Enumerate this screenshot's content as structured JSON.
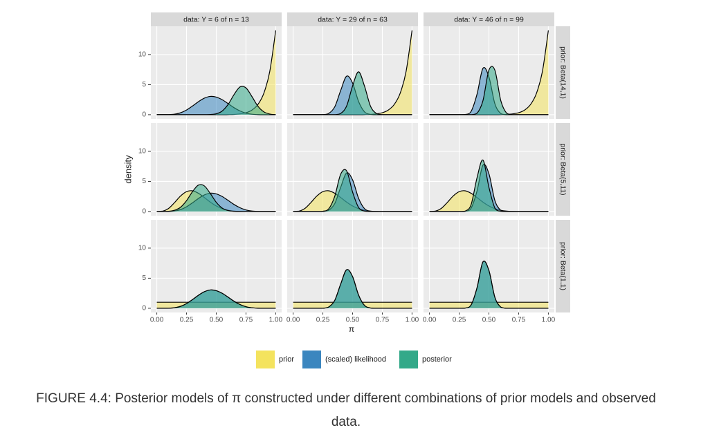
{
  "chart_data": {
    "type": "area",
    "caption": "FIGURE 4.4: Posterior models of π constructed under different combinations of prior models and observed data.",
    "x_label": "π",
    "y_label": "density",
    "x": [
      0,
      0.05,
      0.1,
      0.15,
      0.2,
      0.25,
      0.3,
      0.35,
      0.4,
      0.45,
      0.5,
      0.55,
      0.6,
      0.65,
      0.7,
      0.75,
      0.8,
      0.85,
      0.9,
      0.95,
      1
    ],
    "xlim": [
      -0.05,
      1.05
    ],
    "xticks": [
      {
        "value": 0,
        "label": "0.00"
      },
      {
        "value": 0.25,
        "label": "0.25"
      },
      {
        "value": 0.5,
        "label": "0.50"
      },
      {
        "value": 0.75,
        "label": "0.75"
      },
      {
        "value": 1,
        "label": "1.00"
      }
    ],
    "ylim": [
      -0.7,
      14.7
    ],
    "yticks": [
      0,
      5,
      10
    ],
    "grid": true,
    "legend_position": "bottom",
    "columns": [
      "data: Y = 6 of n = 13",
      "data: Y = 29 of n = 63",
      "data: Y = 46 of n = 99"
    ],
    "rows": [
      "prior: Beta(14,1)",
      "prior: Beta(5,11)",
      "prior: Beta(1,1)"
    ],
    "series": [
      {
        "name": "prior",
        "color": "#f4e35e"
      },
      {
        "name": "(scaled) likelihood",
        "color": "#3b86bf"
      },
      {
        "name": "posterior",
        "color": "#33a989"
      }
    ],
    "panels": [
      [
        [
          [
            0,
            0,
            0,
            0,
            0,
            0,
            0,
            0,
            0,
            0,
            0,
            0,
            0.02,
            0.05,
            0.14,
            0.33,
            0.77,
            1.69,
            3.56,
            7.19,
            14
          ],
          [
            0,
            0,
            0.01,
            0.09,
            0.32,
            0.78,
            1.44,
            2.16,
            2.75,
            3.04,
            2.93,
            2.49,
            1.84,
            1.16,
            0.62,
            0.26,
            0.08,
            0.02,
            0,
            0,
            0
          ],
          [
            0,
            0,
            0,
            0,
            0,
            0,
            0,
            0,
            0,
            0.03,
            0.15,
            0.61,
            1.71,
            3.36,
            4.62,
            4.46,
            3.02,
            1.43,
            0.48,
            0.11,
            0
          ]
        ],
        [
          [
            0,
            0,
            0,
            0,
            0,
            0,
            0,
            0,
            0,
            0,
            0,
            0,
            0.02,
            0.05,
            0.14,
            0.33,
            0.77,
            1.69,
            3.56,
            7.19,
            14
          ],
          [
            0,
            0,
            0,
            0,
            0,
            0.02,
            0.22,
            1.31,
            4.03,
            6.41,
            5.26,
            2.22,
            0.48,
            0.05,
            0,
            0,
            0,
            0,
            0,
            0,
            0
          ],
          [
            0,
            0,
            0,
            0,
            0,
            0,
            0,
            0.01,
            0.2,
            1.45,
            4.78,
            7.13,
            4.78,
            1.45,
            0.2,
            0,
            0,
            0,
            0,
            0,
            0
          ]
        ],
        [
          [
            0,
            0,
            0,
            0,
            0,
            0,
            0,
            0,
            0,
            0,
            0,
            0,
            0.02,
            0.05,
            0.14,
            0.33,
            0.77,
            1.69,
            3.56,
            7.19,
            14
          ],
          [
            0,
            0,
            0,
            0,
            0,
            0,
            0.03,
            0.54,
            3.4,
            7.72,
            6.29,
            1.84,
            0.19,
            0,
            0,
            0,
            0,
            0,
            0,
            0,
            0
          ],
          [
            0,
            0,
            0,
            0,
            0,
            0,
            0,
            0,
            0.23,
            2.34,
            7.41,
            7.41,
            2.34,
            0.23,
            0,
            0,
            0,
            0,
            0,
            0,
            0
          ]
        ]
      ],
      [
        [
          [
            0,
            0.06,
            0.52,
            1.5,
            2.58,
            3.3,
            3.44,
            3.03,
            2.32,
            1.56,
            0.92,
            0.47,
            0.2,
            0.07,
            0.02,
            0,
            0,
            0,
            0,
            0,
            0
          ],
          [
            0,
            0,
            0.01,
            0.09,
            0.32,
            0.78,
            1.44,
            2.16,
            2.75,
            3.04,
            2.93,
            2.49,
            1.84,
            1.16,
            0.62,
            0.26,
            0.08,
            0.02,
            0,
            0,
            0
          ],
          [
            0,
            0,
            0.04,
            0.21,
            0.71,
            1.8,
            3.29,
            4.39,
            4.25,
            2.99,
            1.53,
            0.57,
            0.15,
            0.03,
            0,
            0,
            0,
            0,
            0,
            0,
            0
          ]
        ],
        [
          [
            0,
            0.06,
            0.52,
            1.5,
            2.58,
            3.3,
            3.44,
            3.03,
            2.32,
            1.56,
            0.92,
            0.47,
            0.2,
            0.07,
            0.02,
            0,
            0,
            0,
            0,
            0,
            0
          ],
          [
            0,
            0,
            0,
            0,
            0,
            0.02,
            0.22,
            1.31,
            4.03,
            6.41,
            5.26,
            2.22,
            0.48,
            0.05,
            0,
            0,
            0,
            0,
            0,
            0,
            0
          ],
          [
            0,
            0,
            0,
            0,
            0,
            0.04,
            0.46,
            2.53,
            6.21,
            6.75,
            3.23,
            0.69,
            0.06,
            0,
            0,
            0,
            0,
            0,
            0,
            0,
            0
          ]
        ],
        [
          [
            0,
            0.06,
            0.52,
            1.5,
            2.58,
            3.3,
            3.44,
            3.03,
            2.32,
            1.56,
            0.92,
            0.47,
            0.2,
            0.07,
            0.02,
            0,
            0,
            0,
            0,
            0,
            0
          ],
          [
            0,
            0,
            0,
            0,
            0,
            0,
            0.03,
            0.54,
            3.4,
            7.72,
            6.29,
            1.84,
            0.19,
            0,
            0,
            0,
            0,
            0,
            0,
            0,
            0
          ],
          [
            0,
            0,
            0,
            0,
            0,
            0,
            0.07,
            1.13,
            5.61,
            8.55,
            4.03,
            0.59,
            0.03,
            0,
            0,
            0,
            0,
            0,
            0,
            0,
            0
          ]
        ]
      ],
      [
        [
          [
            1,
            1,
            1,
            1,
            1,
            1,
            1,
            1,
            1,
            1,
            1,
            1,
            1,
            1,
            1,
            1,
            1,
            1,
            1,
            1,
            1
          ],
          [
            0,
            0,
            0.01,
            0.09,
            0.32,
            0.78,
            1.44,
            2.16,
            2.75,
            3.04,
            2.93,
            2.49,
            1.84,
            1.16,
            0.62,
            0.26,
            0.08,
            0.02,
            0,
            0,
            0
          ],
          [
            0,
            0,
            0.01,
            0.09,
            0.32,
            0.78,
            1.44,
            2.16,
            2.75,
            3.04,
            2.93,
            2.49,
            1.84,
            1.16,
            0.62,
            0.26,
            0.08,
            0.02,
            0,
            0,
            0
          ]
        ],
        [
          [
            1,
            1,
            1,
            1,
            1,
            1,
            1,
            1,
            1,
            1,
            1,
            1,
            1,
            1,
            1,
            1,
            1,
            1,
            1,
            1,
            1
          ],
          [
            0,
            0,
            0,
            0,
            0,
            0.02,
            0.22,
            1.31,
            4.03,
            6.41,
            5.26,
            2.22,
            0.48,
            0.05,
            0,
            0,
            0,
            0,
            0,
            0,
            0
          ],
          [
            0,
            0,
            0,
            0,
            0,
            0.02,
            0.22,
            1.31,
            4.03,
            6.41,
            5.26,
            2.22,
            0.48,
            0.05,
            0,
            0,
            0,
            0,
            0,
            0,
            0
          ]
        ],
        [
          [
            1,
            1,
            1,
            1,
            1,
            1,
            1,
            1,
            1,
            1,
            1,
            1,
            1,
            1,
            1,
            1,
            1,
            1,
            1,
            1,
            1
          ],
          [
            0,
            0,
            0,
            0,
            0,
            0,
            0.03,
            0.54,
            3.4,
            7.72,
            6.29,
            1.84,
            0.19,
            0,
            0,
            0,
            0,
            0,
            0,
            0,
            0
          ],
          [
            0,
            0,
            0,
            0,
            0,
            0,
            0.03,
            0.54,
            3.4,
            7.72,
            6.29,
            1.84,
            0.19,
            0,
            0,
            0,
            0,
            0,
            0,
            0,
            0
          ]
        ]
      ]
    ]
  }
}
